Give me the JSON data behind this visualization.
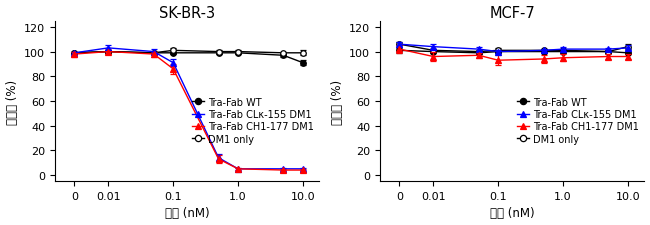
{
  "x_values": [
    0,
    0.01,
    0.05,
    0.1,
    0.5,
    1.0,
    5.0,
    10.0
  ],
  "ylim": [
    -5,
    125
  ],
  "yticks": [
    0,
    20,
    40,
    60,
    80,
    100,
    120
  ],
  "skbr3": {
    "title": "SK-BR-3",
    "Tra_Fab_WT": {
      "y": [
        99,
        100,
        99,
        99,
        99,
        99,
        97,
        91
      ],
      "yerr": [
        1,
        1,
        1,
        1,
        1,
        1,
        1,
        2
      ],
      "color": "#000000",
      "marker": "o",
      "fillstyle": "full",
      "label": "Tra-Fab WT"
    },
    "Tra_Fab_CLk": {
      "y": [
        99,
        103,
        100,
        91,
        14,
        5,
        5,
        5
      ],
      "yerr": [
        1,
        2,
        2,
        3,
        3,
        1,
        1,
        1
      ],
      "color": "#0000ff",
      "marker": "^",
      "fillstyle": "full",
      "label": "Tra-Fab CLκ-155 DM1"
    },
    "Tra_Fab_CH1": {
      "y": [
        98,
        100,
        98,
        86,
        13,
        5,
        4,
        4
      ],
      "yerr": [
        2,
        2,
        2,
        4,
        3,
        1,
        1,
        1
      ],
      "color": "#ff0000",
      "marker": "^",
      "fillstyle": "full",
      "label": "Tra-Fab CH1-177 DM1"
    },
    "DM1_only": {
      "y": [
        99,
        100,
        99,
        101,
        100,
        100,
        99,
        99
      ],
      "yerr": [
        1,
        1,
        1,
        2,
        1,
        1,
        1,
        2
      ],
      "color": "#000000",
      "marker": "o",
      "fillstyle": "none",
      "label": "DM1 only"
    }
  },
  "mcf7": {
    "title": "MCF-7",
    "Tra_Fab_WT": {
      "y": [
        101,
        100,
        99,
        100,
        100,
        100,
        100,
        99
      ],
      "yerr": [
        2,
        1,
        1,
        1,
        1,
        1,
        1,
        1
      ],
      "color": "#000000",
      "marker": "o",
      "fillstyle": "full",
      "label": "Tra-Fab WT"
    },
    "Tra_Fab_CLk": {
      "y": [
        106,
        104,
        102,
        100,
        101,
        102,
        102,
        103
      ],
      "yerr": [
        2,
        2,
        2,
        1,
        1,
        2,
        1,
        2
      ],
      "color": "#0000ff",
      "marker": "^",
      "fillstyle": "full",
      "label": "Tra-Fab CLκ-155 DM1"
    },
    "Tra_Fab_CH1": {
      "y": [
        102,
        96,
        97,
        93,
        94,
        95,
        96,
        96
      ],
      "yerr": [
        3,
        4,
        2,
        4,
        3,
        3,
        2,
        2
      ],
      "color": "#ff0000",
      "marker": "^",
      "fillstyle": "full",
      "label": "Tra-Fab CH1-177 DM1"
    },
    "DM1_only": {
      "y": [
        106,
        101,
        100,
        101,
        101,
        101,
        100,
        104
      ],
      "yerr": [
        2,
        1,
        1,
        2,
        1,
        1,
        1,
        2
      ],
      "color": "#000000",
      "marker": "o",
      "fillstyle": "none",
      "label": "DM1 only"
    }
  },
  "xlabel": "濃度 (nM)",
  "ylabel": "生存率 (%)",
  "legend_fontsize": 7.0,
  "axis_fontsize": 8.5,
  "title_fontsize": 10.5,
  "tick_fontsize": 8
}
